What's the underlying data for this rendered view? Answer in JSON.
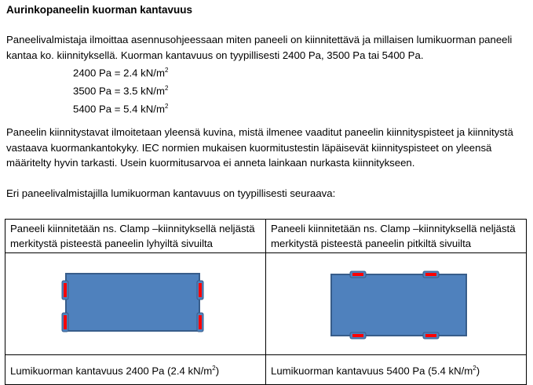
{
  "title": "Aurinkopaneelin kuorman kantavuus",
  "paragraph1": "Paneelivalmistaja ilmoittaa asennusohjeessaan miten paneeli on kiinnitettävä ja millaisen lumikuorman paneeli kantaa ko. kiinnityksellä. Kuorman kantavuus on tyypillisesti 2400 Pa, 3500 Pa tai 5400 Pa.",
  "conversions": [
    {
      "pa": "2400 Pa = 2.4 kN/m",
      "exp": "2"
    },
    {
      "pa": "3500 Pa = 3.5 kN/m",
      "exp": "2"
    },
    {
      "pa": "5400 Pa = 5.4 kN/m",
      "exp": "2"
    }
  ],
  "paragraph2": "Paneelin kiinnitystavat ilmoitetaan yleensä kuvina, mistä ilmenee vaaditut paneelin kiinnityspisteet ja kiinnitystä vastaava kuormankantokyky. IEC normien mukaisen kuormitustestin läpäisevät kiinnityspisteet on yleensä määritelty hyvin tarkasti. Usein kuormitusarvoa ei anneta lainkaan nurkasta kiinnitykseen.",
  "paragraph3": "Eri paneelivalmistajilla lumikuorman kantavuus on tyypillisesti seuraava:",
  "table": {
    "headers": [
      "Paneeli kiinnitetään ns. Clamp –kiinnityksellä neljästä merkitystä pisteestä paneelin lyhyiltä sivuilta",
      "Paneeli kiinnitetään ns. Clamp –kiinnityksellä neljästä merkitystä pisteestä paneelin pitkiltä sivuilta"
    ],
    "footers": [
      {
        "text": "Lumikuorman kantavuus 2400 Pa (2.4 kN/m",
        "exp": "2",
        "close": ")"
      },
      {
        "text": "Lumikuorman kantavuus 5400 Pa (5.4 kN/m",
        "exp": "2",
        "close": ")"
      }
    ]
  },
  "colors": {
    "panel": "#4f81bd",
    "panel_border": "#385d8a",
    "clamp": "#ff0000"
  }
}
